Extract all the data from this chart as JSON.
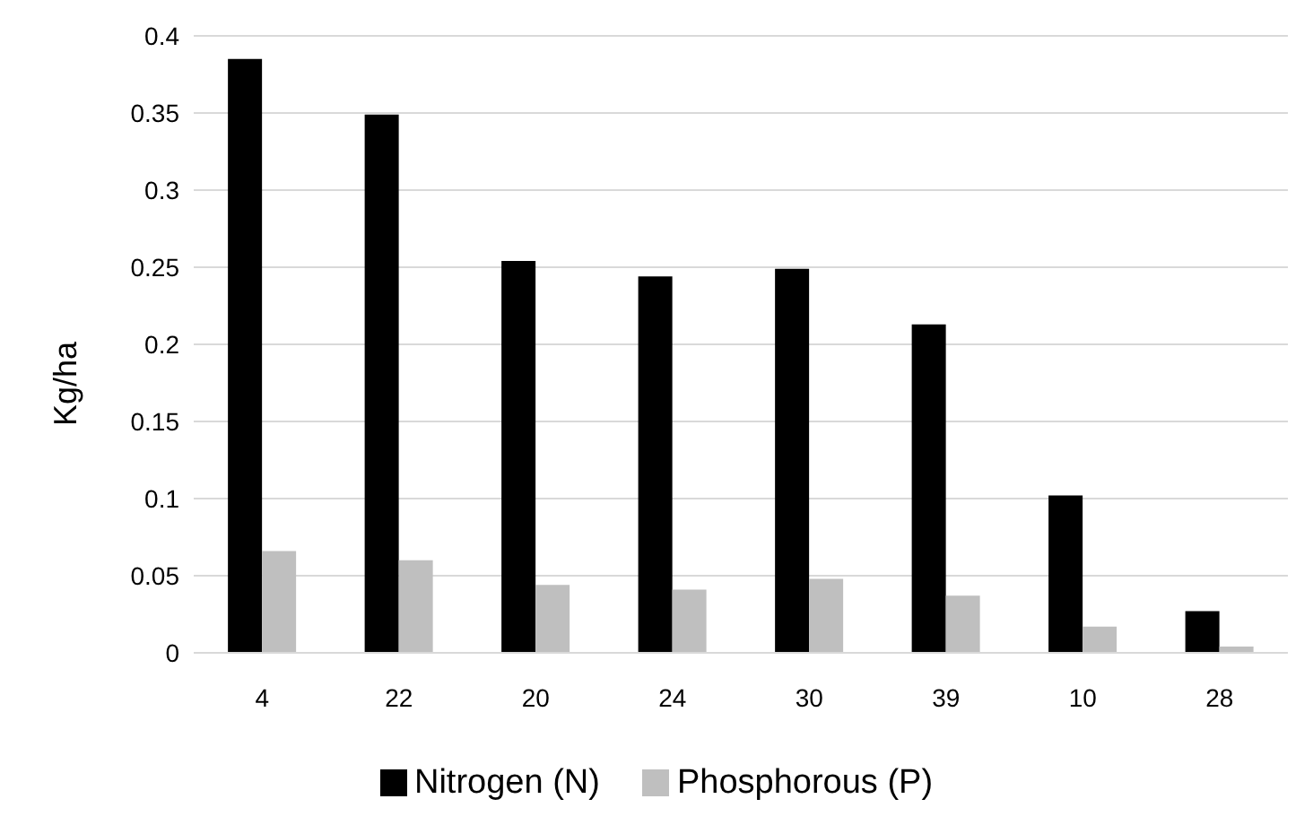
{
  "chart_data": {
    "type": "bar",
    "ylabel": "Kg/ha",
    "categories": [
      "4",
      "22",
      "20",
      "24",
      "30",
      "39",
      "10",
      "28"
    ],
    "series": [
      {
        "name": "Nitrogen (N)",
        "color": "#000000",
        "values": [
          0.385,
          0.349,
          0.254,
          0.244,
          0.249,
          0.213,
          0.102,
          0.027
        ]
      },
      {
        "name": "Phosphorous (P)",
        "color": "#bfbfbf",
        "values": [
          0.066,
          0.06,
          0.044,
          0.041,
          0.048,
          0.037,
          0.017,
          0.004
        ]
      }
    ],
    "ylim": [
      0,
      0.4
    ],
    "yticks": [
      0,
      0.05,
      0.1,
      0.15,
      0.2,
      0.25,
      0.3,
      0.35,
      0.4
    ],
    "grid": "y",
    "legend": "bottom"
  }
}
